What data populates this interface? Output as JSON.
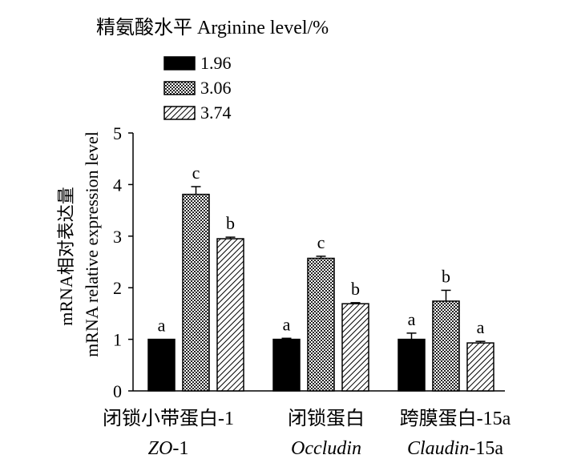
{
  "chart_data": {
    "type": "bar",
    "legend_title": "精氨酸水平  Arginine level/%",
    "legend_placement": "top-left",
    "ylabel_cn": "mRNA相对表达量",
    "ylabel_en": "mRNA relative expression level",
    "ylim": [
      0,
      5
    ],
    "yticks": [
      "0",
      "1",
      "2",
      "3",
      "4",
      "5"
    ],
    "grid": false,
    "categories": [
      {
        "cn": "闭锁小带蛋白-1",
        "en_italic": "ZO",
        "en_suffix": "-1"
      },
      {
        "cn": "闭锁蛋白",
        "en_italic": "Occludin",
        "en_suffix": ""
      },
      {
        "cn": "跨膜蛋白-15a",
        "en_italic": "Claudin",
        "en_suffix": "-15a"
      }
    ],
    "series": [
      {
        "name": "1.96",
        "fill": "solid",
        "color": "#000000",
        "values": [
          1.0,
          1.0,
          1.0
        ],
        "errors": [
          0.0,
          0.02,
          0.12
        ],
        "letters": [
          "a",
          "a",
          "a"
        ]
      },
      {
        "name": "3.06",
        "fill": "checker",
        "color": "#000000",
        "values": [
          3.81,
          2.57,
          1.74
        ],
        "errors": [
          0.15,
          0.04,
          0.21
        ],
        "letters": [
          "c",
          "c",
          "b"
        ]
      },
      {
        "name": "3.74",
        "fill": "hatch",
        "color": "#000000",
        "values": [
          2.95,
          1.69,
          0.93
        ],
        "errors": [
          0.03,
          0.02,
          0.03
        ],
        "letters": [
          "b",
          "b",
          "a"
        ]
      }
    ]
  }
}
